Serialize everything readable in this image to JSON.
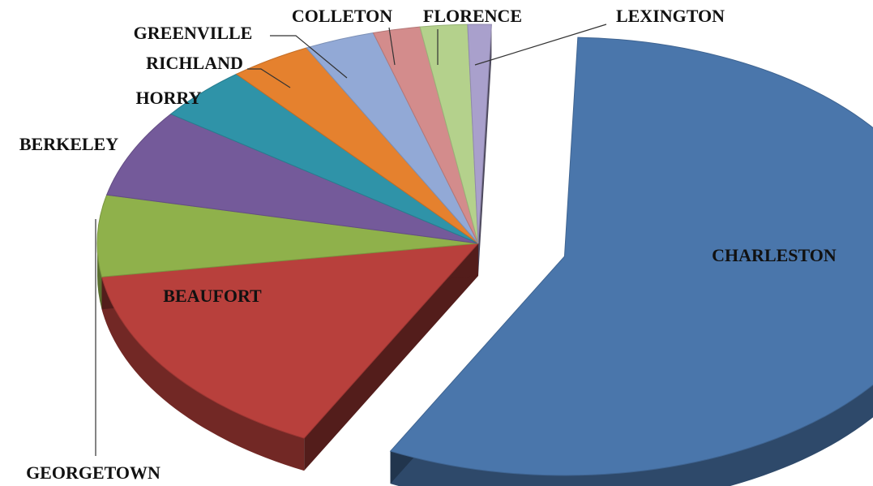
{
  "chart_data": {
    "type": "pie",
    "style": "3d-exploded",
    "title": "",
    "slices": [
      {
        "name": "CHARLESTON",
        "value": 57.0,
        "color": "#4a76ab"
      },
      {
        "name": "BEAUFORT",
        "value": 15.0,
        "color": "#b8403c"
      },
      {
        "name": "GEORGETOWN",
        "value": 6.0,
        "color": "#8fb14b"
      },
      {
        "name": "BERKELEY",
        "value": 6.5,
        "color": "#745a9a"
      },
      {
        "name": "HORRY",
        "value": 4.0,
        "color": "#2f93a8"
      },
      {
        "name": "RICHLAND",
        "value": 3.5,
        "color": "#e5812e"
      },
      {
        "name": "GREENVILLE",
        "value": 3.0,
        "color": "#92a9d6"
      },
      {
        "name": "COLLETON",
        "value": 2.0,
        "color": "#d38c8c"
      },
      {
        "name": "FLORENCE",
        "value": 2.0,
        "color": "#b4d18c"
      },
      {
        "name": "LEXINGTON",
        "value": 1.0,
        "color": "#a9a0cc"
      }
    ],
    "legend": "none",
    "labels": "category names on slices / with leader lines"
  }
}
